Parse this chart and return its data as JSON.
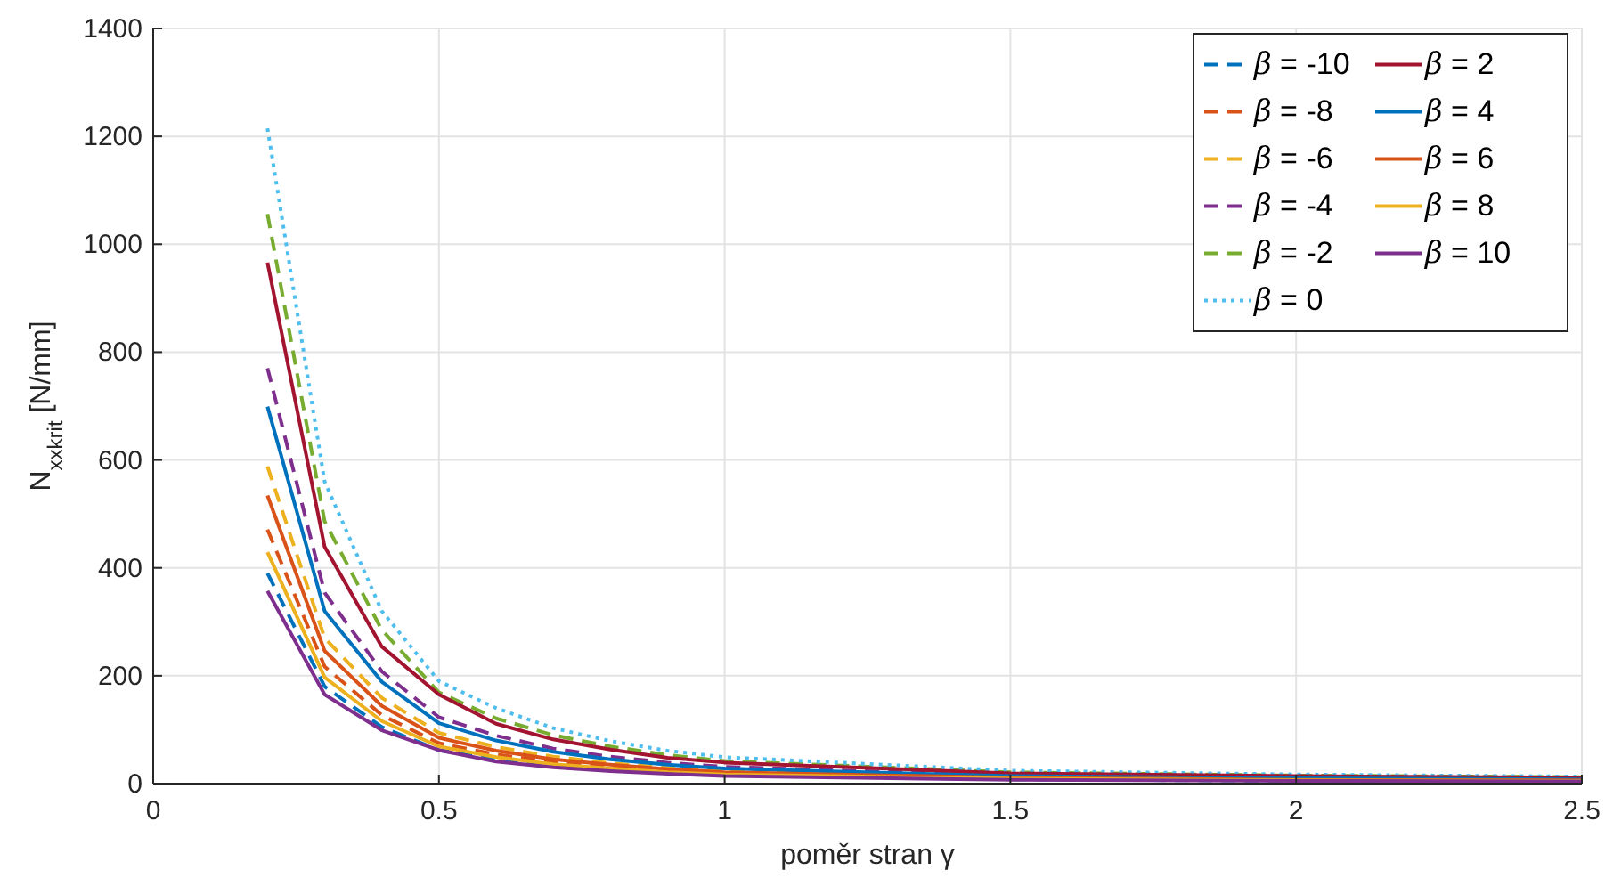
{
  "chart_data": {
    "type": "line",
    "xlabel": "poměr stran γ",
    "ylabel": "N$_{xxkrit}$ [N/mm]",
    "x": [
      0.2,
      0.3,
      0.4,
      0.5,
      0.6,
      0.7,
      0.8,
      0.9,
      1.0,
      1.5,
      2.0,
      2.5
    ],
    "xlim": [
      0,
      2.5
    ],
    "xticks": [
      0,
      0.5,
      1,
      1.5,
      2,
      2.5
    ],
    "ylim": [
      0,
      1400
    ],
    "yticks": [
      0,
      200,
      400,
      600,
      800,
      1000,
      1200,
      1400
    ],
    "grid": true,
    "legend": "top right",
    "series": [
      {
        "name": "β = -10",
        "color": "#0072bd",
        "line_style": "dashed",
        "values": [
          390,
          180,
          105,
          62,
          45,
          33,
          25,
          20,
          16,
          8,
          5,
          4
        ]
      },
      {
        "name": "β = -8",
        "color": "#d95319",
        "line_style": "dashed",
        "values": [
          471,
          217,
          127,
          75,
          54,
          40,
          31,
          24,
          19,
          9,
          7,
          5
        ]
      },
      {
        "name": "β = -6",
        "color": "#edb120",
        "line_style": "dashed",
        "values": [
          588,
          270,
          159,
          94,
          68,
          50,
          38,
          29,
          24,
          12,
          8,
          6
        ]
      },
      {
        "name": "β = -4",
        "color": "#7e2f8e",
        "line_style": "dashed",
        "values": [
          770,
          354,
          208,
          123,
          89,
          65,
          50,
          39,
          31,
          15,
          11,
          8
        ]
      },
      {
        "name": "β = -2",
        "color": "#77ac30",
        "line_style": "dashed",
        "values": [
          1056,
          486,
          285,
          169,
          121,
          90,
          69,
          53,
          42,
          21,
          15,
          12
        ]
      },
      {
        "name": "β = 0",
        "color": "#4dbeee",
        "line_style": "dotted",
        "values": [
          1215,
          560,
          320,
          190,
          140,
          103,
          79,
          61,
          49,
          24,
          17,
          13
        ]
      },
      {
        "name": "β = 2",
        "color": "#a2142f",
        "line_style": "solid",
        "values": [
          966,
          439,
          254,
          165,
          111,
          82,
          63,
          48,
          39,
          19,
          14,
          11
        ]
      },
      {
        "name": "β = 4",
        "color": "#0072bd",
        "line_style": "solid",
        "values": [
          699,
          320,
          189,
          112,
          80,
          59,
          45,
          35,
          28,
          14,
          10,
          8
        ]
      },
      {
        "name": "β = 6",
        "color": "#d95319",
        "line_style": "solid",
        "values": [
          534,
          246,
          144,
          85,
          61,
          45,
          35,
          27,
          21,
          11,
          7,
          6
        ]
      },
      {
        "name": "β = 8",
        "color": "#edb120",
        "line_style": "solid",
        "values": [
          429,
          197,
          116,
          69,
          49,
          36,
          28,
          21,
          17,
          9,
          6,
          5
        ]
      },
      {
        "name": "β = 10",
        "color": "#7e2f8e",
        "line_style": "solid",
        "values": [
          357,
          165,
          99,
          62,
          41,
          30,
          23,
          18,
          14,
          7,
          5,
          4
        ]
      }
    ]
  }
}
